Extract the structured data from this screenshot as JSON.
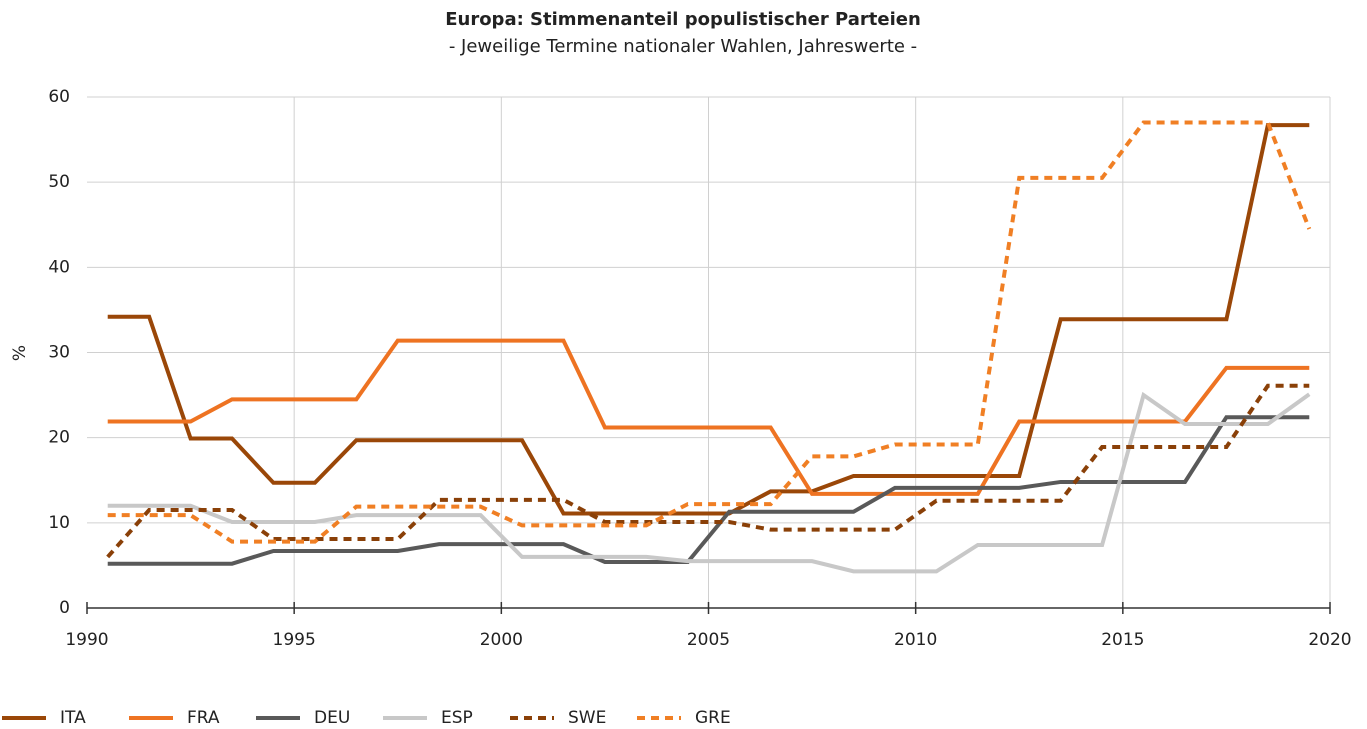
{
  "chart_data": {
    "type": "line",
    "title": "Europa: Stimmenanteil populistischer Parteien",
    "subtitle": "- Jeweilige Termine nationaler Wahlen, Jahreswerte -",
    "y_label": "%",
    "x": [
      1990.5,
      1991.5,
      1992.5,
      1993.5,
      1994.5,
      1995.5,
      1996.5,
      1997.5,
      1998.5,
      1999.5,
      2000.5,
      2001.5,
      2002.5,
      2003.5,
      2004.5,
      2005.5,
      2006.5,
      2007.5,
      2008.5,
      2009.5,
      2010.5,
      2011.5,
      2012.5,
      2013.5,
      2014.5,
      2015.5,
      2016.5,
      2017.5,
      2018.5,
      2019.5
    ],
    "series": [
      {
        "name": "ITA",
        "color": "#9a4708",
        "style": "solid",
        "values": [
          34.2,
          34.2,
          19.9,
          19.9,
          14.7,
          14.7,
          19.7,
          19.7,
          19.7,
          19.7,
          19.7,
          11.1,
          11.1,
          11.1,
          11.1,
          11.1,
          13.7,
          13.7,
          15.5,
          15.5,
          15.5,
          15.5,
          15.5,
          33.9,
          33.9,
          33.9,
          33.9,
          33.9,
          56.7,
          56.7
        ]
      },
      {
        "name": "FRA",
        "color": "#ee7322",
        "style": "solid",
        "values": [
          21.9,
          21.9,
          21.9,
          24.5,
          24.5,
          24.5,
          24.5,
          31.4,
          31.4,
          31.4,
          31.4,
          31.4,
          21.2,
          21.2,
          21.2,
          21.2,
          21.2,
          13.4,
          13.4,
          13.4,
          13.4,
          13.4,
          21.9,
          21.9,
          21.9,
          21.9,
          21.9,
          28.2,
          28.2,
          28.2
        ]
      },
      {
        "name": "DEU",
        "color": "#595959",
        "style": "solid",
        "values": [
          5.2,
          5.2,
          5.2,
          5.2,
          6.7,
          6.7,
          6.7,
          6.7,
          7.5,
          7.5,
          7.5,
          7.5,
          5.4,
          5.4,
          5.4,
          11.3,
          11.3,
          11.3,
          11.3,
          14.1,
          14.1,
          14.1,
          14.1,
          14.8,
          14.8,
          14.8,
          14.8,
          22.4,
          22.4,
          22.4
        ]
      },
      {
        "name": "ESP",
        "color": "#c8c8c8",
        "style": "solid",
        "values": [
          12,
          12,
          12,
          10.1,
          10.1,
          10.1,
          10.9,
          10.9,
          10.9,
          10.9,
          6,
          6,
          6,
          6,
          5.5,
          5.5,
          5.5,
          5.5,
          4.3,
          4.3,
          4.3,
          7.4,
          7.4,
          7.4,
          7.4,
          25,
          21.6,
          21.6,
          21.6,
          25.1
        ]
      },
      {
        "name": "SWE",
        "color": "#8a4008",
        "style": "dashed",
        "values": [
          6,
          11.5,
          11.5,
          11.5,
          8.1,
          8.1,
          8.1,
          8.1,
          12.7,
          12.7,
          12.7,
          12.7,
          10.1,
          10.1,
          10.1,
          10.1,
          9.2,
          9.2,
          9.2,
          9.2,
          12.6,
          12.6,
          12.6,
          12.6,
          18.9,
          18.9,
          18.9,
          18.9,
          26.1,
          26.1
        ]
      },
      {
        "name": "GRE",
        "color": "#f07f24",
        "style": "dashed",
        "values": [
          10.9,
          10.9,
          10.9,
          7.8,
          7.8,
          7.8,
          11.9,
          11.9,
          11.9,
          11.9,
          9.7,
          9.7,
          9.7,
          9.7,
          12.2,
          12.2,
          12.2,
          17.8,
          17.8,
          19.2,
          19.2,
          19.2,
          50.5,
          50.5,
          50.5,
          57,
          57,
          57,
          57,
          44.5
        ]
      }
    ],
    "xlim": [
      1990,
      2020
    ],
    "xticks": [
      1990,
      1995,
      2000,
      2005,
      2010,
      2015,
      2020
    ],
    "ylim": [
      0,
      60
    ],
    "yticks": [
      0,
      10,
      20,
      30,
      40,
      50,
      60
    ],
    "grid": true,
    "legend": "bottom-left"
  }
}
